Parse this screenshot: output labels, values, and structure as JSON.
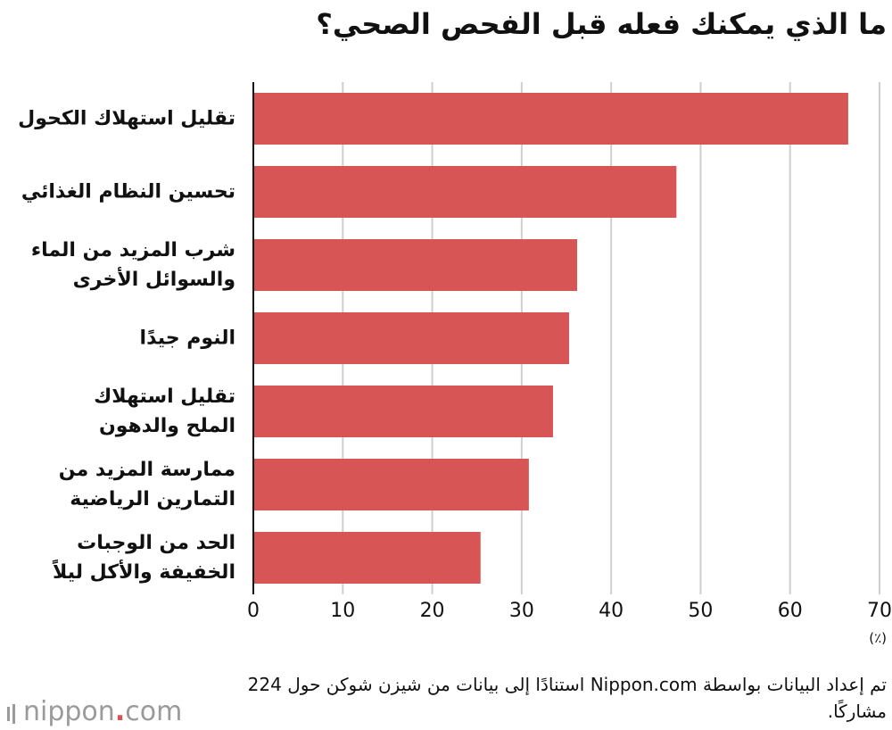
{
  "title": "ما الذي يمكنك فعله قبل الفحص الصحي؟",
  "unit": "(٪)",
  "source": "تم إعداد البيانات بواسطة Nippon.com استنادًا إلى بيانات من شيزن شوكن حول 224 مشاركًا.",
  "logo": {
    "name": "nippon",
    "dot": ".",
    "suffix": "com"
  },
  "colors": {
    "bar": "#d85555",
    "grid": "#cfcfcf",
    "axis": "#111111"
  },
  "chart_data": {
    "type": "bar",
    "orientation": "horizontal",
    "categories": [
      "تقليل استهلاك الكحول",
      "تحسين النظام الغذائي",
      "شرب المزيد من الماء والسوائل الأخرى",
      "النوم جيدًا",
      "تقليل استهلاك الملح والدهون",
      "ممارسة المزيد من التمارين الرياضية",
      "الحد من الوجبات الخفيفة والأكل ليلاً"
    ],
    "category_lines": [
      [
        "تقليل استهلاك الكحول"
      ],
      [
        "تحسين النظام الغذائي"
      ],
      [
        "شرب المزيد من الماء",
        "والسوائل الأخرى"
      ],
      [
        "النوم جيدًا"
      ],
      [
        "تقليل استهلاك",
        "الملح والدهون"
      ],
      [
        "ممارسة المزيد من",
        "التمارين الرياضية"
      ],
      [
        "الحد من الوجبات",
        "الخفيفة والأكل ليلاً"
      ]
    ],
    "values": [
      66.5,
      47.3,
      36.2,
      35.3,
      33.5,
      30.8,
      25.4
    ],
    "xlim": [
      0,
      70
    ],
    "ticks": [
      "0",
      "10",
      "20",
      "30",
      "40",
      "50",
      "60",
      "70"
    ],
    "grid": true,
    "legend": "none"
  }
}
